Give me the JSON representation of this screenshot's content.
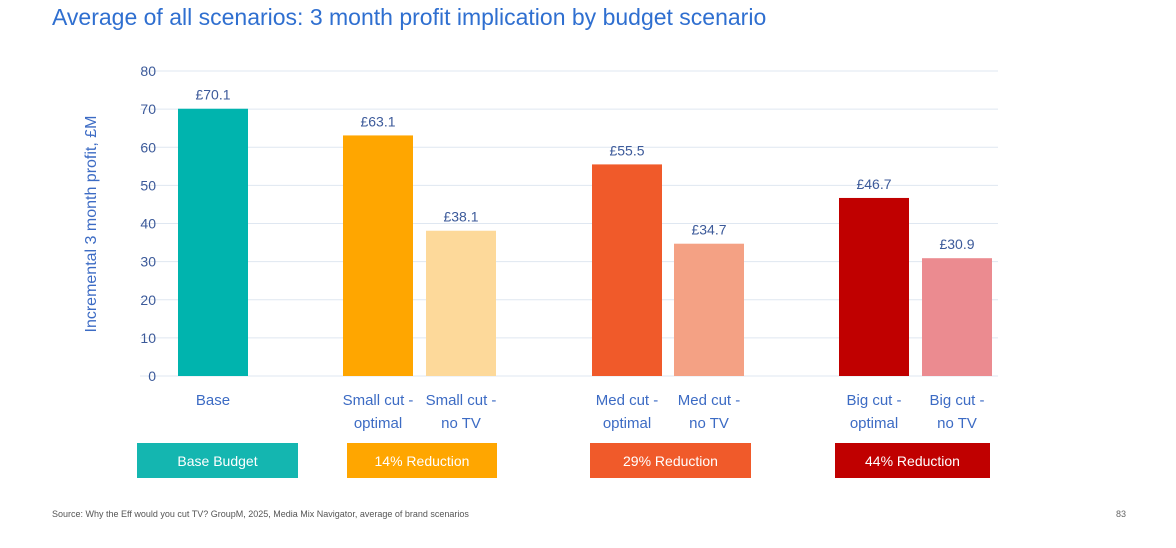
{
  "title": "Average of all scenarios: 3 month profit implication by budget scenario",
  "chart_data": {
    "type": "bar",
    "title": "Average of all scenarios: 3 month profit implication by budget scenario",
    "xlabel": "",
    "ylabel": "Incremental 3 month profit, £M",
    "ylim": [
      0,
      80
    ],
    "yticks": [
      0,
      10,
      20,
      30,
      40,
      50,
      60,
      70,
      80
    ],
    "grid": true,
    "categories": [
      [
        "Base"
      ],
      [
        "Small cut -",
        "optimal"
      ],
      [
        "Small cut -",
        "no TV"
      ],
      [
        "Med cut -",
        "optimal"
      ],
      [
        "Med cut -",
        "no TV"
      ],
      [
        "Big cut -",
        "optimal"
      ],
      [
        "Big cut -",
        "no TV"
      ]
    ],
    "values": [
      70.1,
      63.1,
      38.1,
      55.5,
      34.7,
      46.7,
      30.9
    ],
    "value_labels": [
      "£70.1",
      "£63.1",
      "£38.1",
      "£55.5",
      "£34.7",
      "£46.7",
      "£30.9"
    ],
    "colors": [
      "#00b4ae",
      "#ffa600",
      "#fdd99a",
      "#f05a2a",
      "#f4a184",
      "#c00000",
      "#eb8b90"
    ],
    "groups": [
      {
        "label": "Base Budget",
        "color": "#14b6b0",
        "members": [
          0
        ]
      },
      {
        "label": "14% Reduction",
        "color": "#ffa600",
        "members": [
          1,
          2
        ]
      },
      {
        "label": "29% Reduction",
        "color": "#f05a2a",
        "members": [
          3,
          4
        ]
      },
      {
        "label": "44% Reduction",
        "color": "#c00000",
        "members": [
          5,
          6
        ]
      }
    ]
  },
  "footer": {
    "source": "Source: Why the Eff would you cut TV? GroupM, 2025, Media Mix Navigator, average of brand scenarios",
    "page_number": "83"
  }
}
